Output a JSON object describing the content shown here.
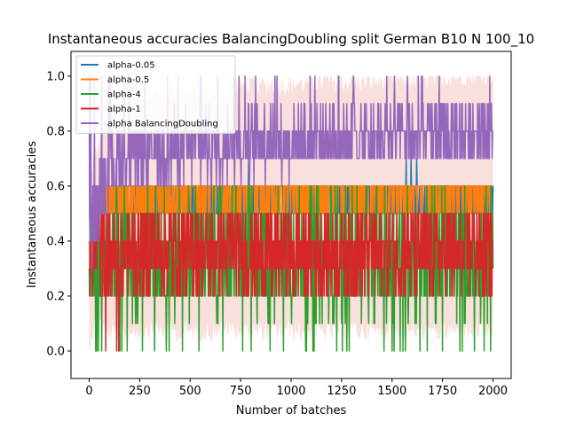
{
  "chart_data": {
    "type": "line",
    "title": "Instantaneous accuracies BalancingDoubling split German B10 N 100_10",
    "xlabel": "Number of batches",
    "ylabel": "Instantaneous accuracies",
    "xlim": [
      -90,
      2090
    ],
    "ylim": [
      -0.1,
      1.09
    ],
    "xticks": [
      0,
      250,
      500,
      750,
      1000,
      1250,
      1500,
      1750,
      2000
    ],
    "yticks": [
      0.0,
      0.2,
      0.4,
      0.6,
      0.8,
      1.0
    ],
    "legend_position": "upper-left",
    "grid": false,
    "series": [
      {
        "name": "alpha-0.05",
        "color": "#1f77b4",
        "x": [
          0,
          10,
          25,
          50,
          75,
          100,
          150,
          200,
          300,
          400,
          500,
          600,
          700,
          800,
          900,
          1000,
          1100,
          1200,
          1300,
          1400,
          1500,
          1600,
          1700,
          1800,
          1900,
          2000
        ],
        "y": [
          0.35,
          0.45,
          0.5,
          0.52,
          0.55,
          0.55,
          0.55,
          0.55,
          0.55,
          0.55,
          0.55,
          0.55,
          0.55,
          0.56,
          0.55,
          0.55,
          0.55,
          0.55,
          0.55,
          0.55,
          0.55,
          0.56,
          0.55,
          0.55,
          0.55,
          0.55
        ]
      },
      {
        "name": "alpha-0.5",
        "color": "#ff7f0e",
        "x": [
          0,
          10,
          25,
          50,
          75,
          100,
          150,
          200,
          300,
          400,
          500,
          600,
          700,
          800,
          900,
          1000,
          1100,
          1200,
          1300,
          1400,
          1500,
          1600,
          1700,
          1800,
          1900,
          2000
        ],
        "y": [
          0.35,
          0.45,
          0.5,
          0.54,
          0.56,
          0.56,
          0.56,
          0.56,
          0.56,
          0.56,
          0.56,
          0.56,
          0.56,
          0.57,
          0.56,
          0.56,
          0.56,
          0.56,
          0.56,
          0.56,
          0.56,
          0.57,
          0.56,
          0.56,
          0.56,
          0.56
        ]
      },
      {
        "name": "alpha-4",
        "color": "#2ca02c",
        "x": [
          0,
          10,
          25,
          50,
          75,
          100,
          150,
          200,
          300,
          400,
          500,
          600,
          700,
          800,
          900,
          1000,
          1100,
          1200,
          1300,
          1400,
          1500,
          1600,
          1700,
          1800,
          1900,
          2000
        ],
        "y": [
          0.3,
          0.35,
          0.38,
          0.4,
          0.36,
          0.34,
          0.35,
          0.35,
          0.36,
          0.35,
          0.35,
          0.35,
          0.36,
          0.35,
          0.35,
          0.35,
          0.35,
          0.35,
          0.36,
          0.35,
          0.35,
          0.35,
          0.35,
          0.35,
          0.35,
          0.35
        ]
      },
      {
        "name": "alpha-1",
        "color": "#d62728",
        "x": [
          0,
          10,
          25,
          50,
          75,
          100,
          150,
          200,
          300,
          400,
          500,
          600,
          700,
          800,
          900,
          1000,
          1100,
          1200,
          1300,
          1400,
          1500,
          1600,
          1700,
          1800,
          1900,
          2000
        ],
        "y": [
          0.3,
          0.35,
          0.38,
          0.4,
          0.37,
          0.35,
          0.36,
          0.36,
          0.37,
          0.36,
          0.36,
          0.36,
          0.37,
          0.36,
          0.36,
          0.36,
          0.36,
          0.36,
          0.37,
          0.36,
          0.36,
          0.36,
          0.36,
          0.36,
          0.36,
          0.36
        ]
      },
      {
        "name": "alpha BalancingDoubling",
        "color": "#9467bd",
        "x": [
          0,
          10,
          25,
          50,
          75,
          100,
          150,
          200,
          300,
          400,
          500,
          600,
          700,
          800,
          900,
          1000,
          1100,
          1200,
          1300,
          1400,
          1500,
          1600,
          1700,
          1800,
          1900,
          2000
        ],
        "y": [
          0.35,
          0.45,
          0.5,
          0.55,
          0.62,
          0.66,
          0.7,
          0.71,
          0.72,
          0.73,
          0.74,
          0.74,
          0.75,
          0.76,
          0.76,
          0.76,
          0.77,
          0.77,
          0.77,
          0.77,
          0.78,
          0.78,
          0.78,
          0.79,
          0.8,
          0.8
        ]
      }
    ],
    "noise_amplitude": {
      "alpha-0.05": 0.1,
      "alpha-0.5": 0.06,
      "alpha-4": 0.22,
      "alpha-1": 0.17,
      "alpha BalancingDoubling": 0.12
    },
    "band_color": "#f4c6c0"
  }
}
